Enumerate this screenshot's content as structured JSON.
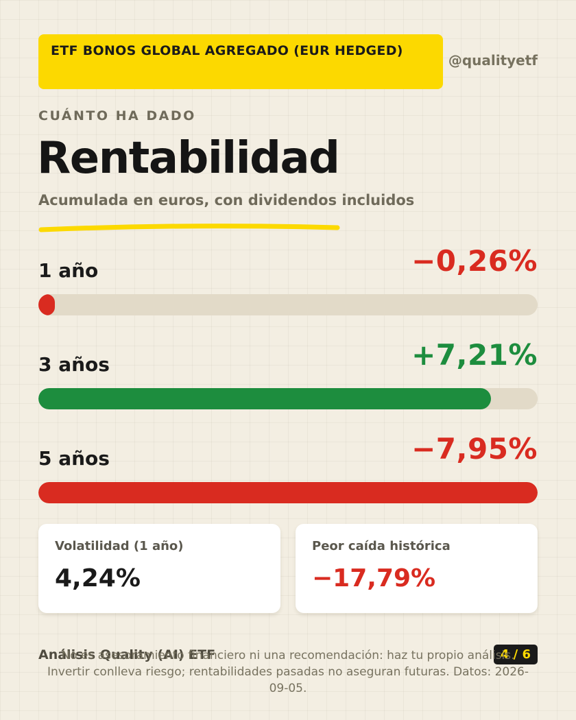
{
  "header": {
    "tag": "ETF BONOS GLOBAL AGREGADO (EUR HEDGED)",
    "handle": "@qualityetf"
  },
  "eyebrow": "CUÁNTO HA DADO",
  "title": "Rentabilidad",
  "subtitle": "Acumulada en euros, con dividendos incluidos",
  "colors": {
    "accent": "#fcd900",
    "positive": "#1d8d3e",
    "negative": "#d92b20",
    "track": "#e2dac8"
  },
  "chart_data": {
    "type": "bar",
    "categories": [
      "1 año",
      "3 años",
      "5 años"
    ],
    "values": [
      -0.26,
      7.21,
      -7.95
    ],
    "value_labels": [
      "−0,26%",
      "+7,21%",
      "−7,95%"
    ],
    "scale_max_abs": 7.95
  },
  "cards": [
    {
      "label": "Volatilidad (1 año)",
      "value": "4,24%",
      "tone": "neutral"
    },
    {
      "label": "Peor caída histórica",
      "value": "−17,79%",
      "tone": "negative"
    }
  ],
  "footer": {
    "brand": "Análisis Quality (AI) ETF",
    "page": "4 / 6",
    "disclaimer": "No es asesoramiento financiero ni una recomendación: haz tu propio análisis. Invertir conlleva riesgo; rentabilidades pasadas no aseguran futuras. Datos: 2026-09-05."
  }
}
